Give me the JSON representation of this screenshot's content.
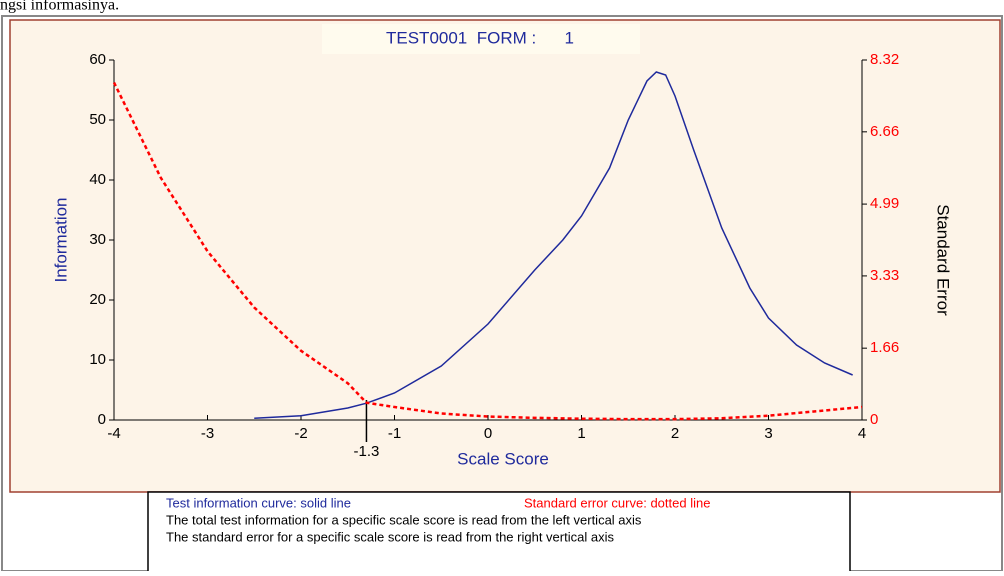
{
  "page_text": "ngsi informasinya.",
  "chart_data": {
    "type": "line",
    "title": "TEST0001  FORM :      1",
    "x_label": "Scale Score",
    "y_label": "Information",
    "y2_label": "Standard Error",
    "xlim": [
      -4,
      4
    ],
    "xticks": [
      -4,
      -3,
      -2,
      -1,
      0,
      1,
      2,
      3,
      4
    ],
    "ylim": [
      0,
      60
    ],
    "yticks": [
      0,
      10,
      20,
      30,
      40,
      50,
      60
    ],
    "y2lim": [
      0,
      8.32
    ],
    "y2ticks": [
      0,
      1.66,
      3.33,
      4.99,
      6.66,
      8.32
    ],
    "marker_x": -1.3,
    "series": [
      {
        "name": "Test information curve: solid line",
        "color": "#1f2a9c",
        "dashed": false,
        "x": [
          -2.5,
          -2,
          -1.5,
          -1.3,
          -1,
          -0.5,
          0,
          0.5,
          0.8,
          1,
          1.3,
          1.5,
          1.7,
          1.8,
          1.9,
          2,
          2.2,
          2.5,
          2.8,
          3,
          3.3,
          3.6,
          3.9
        ],
        "values": [
          0.3,
          0.7,
          2,
          2.8,
          4.5,
          9,
          16,
          25,
          30,
          34,
          42,
          50,
          56.5,
          58,
          57.5,
          54,
          45,
          32,
          22,
          17,
          12.5,
          9.5,
          7.5
        ]
      },
      {
        "name": "Standard error curve: dotted line",
        "color": "#ff0000",
        "dashed": true,
        "axis": "y2",
        "x": [
          -4,
          -3.5,
          -3,
          -2.5,
          -2,
          -1.5,
          -1.3,
          -1,
          -0.5,
          0,
          0.5,
          1,
          1.5,
          2,
          2.5,
          3,
          3.5,
          4
        ],
        "values": [
          7.8,
          5.6,
          3.9,
          2.6,
          1.6,
          0.85,
          0.4,
          0.3,
          0.15,
          0.08,
          0.05,
          0.03,
          0.02,
          0.02,
          0.04,
          0.1,
          0.2,
          0.3
        ]
      }
    ]
  },
  "notes": [
    "The total test information for a specific scale score is read from the left vertical axis",
    "The standard error for a specific scale score is read from the right vertical axis"
  ]
}
